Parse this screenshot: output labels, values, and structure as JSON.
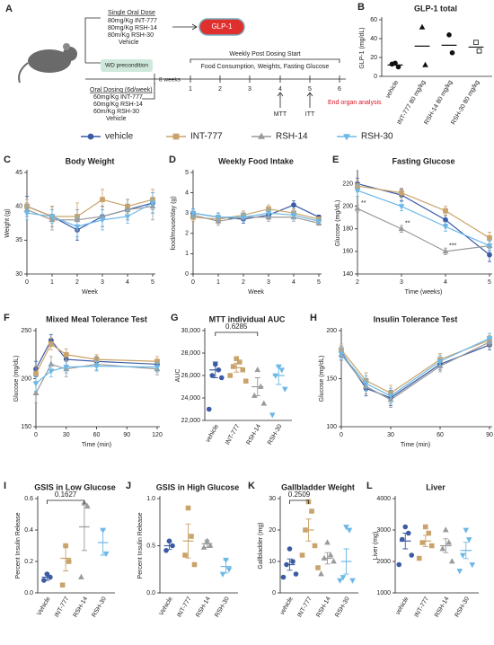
{
  "schematic": {
    "panel": "A",
    "single_dose_title": "Single Oral Dose",
    "single_doses": [
      "80mg/Kg INT-777",
      "80mg/Kg RSH-14",
      "80m/Kg RSH-30",
      "Vehicle"
    ],
    "readout": "GLP-1",
    "precondition": "WD precondition",
    "duration": "8 weeks",
    "dosing_title": "Oral Dosing (6d/week)",
    "dosing": [
      "60mg/Kg INT-777",
      "60mg/Kg RSH-14",
      "60m/Kg RSH-30",
      "Vehicle"
    ],
    "weekly_title": "Weekly Post Dosing Start",
    "weekly_measures": "Food Consumption, Weights, Fasting Glucose",
    "weeks": [
      1,
      2,
      3,
      4,
      5,
      6
    ],
    "tests": [
      "MTT",
      "ITT"
    ],
    "endpoint": "End organ analysis"
  },
  "legend": [
    {
      "name": "vehicle",
      "color": "#3b5ba5",
      "marker": "circle"
    },
    {
      "name": "INT-777",
      "color": "#c9a36b",
      "marker": "square"
    },
    {
      "name": "RSH-14",
      "color": "#9a9a9a",
      "marker": "triangle"
    },
    {
      "name": "RSH-30",
      "color": "#6cb8e6",
      "marker": "triangle-down"
    }
  ],
  "chart_data": [
    {
      "type": "dot",
      "panel": "B",
      "title": "GLP-1 total",
      "ylabel": "GLP-1 (mg/dL)",
      "ylim": [
        0,
        60
      ],
      "yticks": [
        0,
        20,
        40,
        60
      ],
      "groups": [
        {
          "name": "vehicle",
          "color": "#111",
          "marker": "circle",
          "values": [
            14,
            10,
            13
          ],
          "mean": 12
        },
        {
          "name": "INT-777 80 mg/kg",
          "color": "#111",
          "marker": "triangle",
          "values": [
            52,
            12
          ],
          "mean": 32
        },
        {
          "name": "RSH-14 80 mg/kg",
          "color": "#111",
          "marker": "circle",
          "values": [
            44,
            25
          ],
          "mean": 33
        },
        {
          "name": "RSH-30 80 mg/kg",
          "color": "#111",
          "marker": "square-open",
          "values": [
            36,
            27
          ],
          "mean": 31
        }
      ]
    },
    {
      "type": "line",
      "panel": "C",
      "title": "Body Weight",
      "xlabel": "Week",
      "ylabel": "Weight (g)",
      "x": [
        0,
        1,
        2,
        3,
        4,
        5
      ],
      "xlim": [
        0,
        5
      ],
      "xticks": [
        0,
        1,
        2,
        3,
        4,
        5
      ],
      "ylim": [
        30,
        45
      ],
      "yticks": [
        30,
        35,
        40,
        45
      ],
      "series": [
        {
          "name": "vehicle",
          "color": "#3b5ba5",
          "marker": "circle",
          "values": [
            40,
            38.5,
            36.5,
            38.5,
            39.5,
            40.5
          ],
          "errors": [
            1.5,
            1.5,
            1.5,
            1.5,
            1.5,
            1.5
          ]
        },
        {
          "name": "INT-777",
          "color": "#c9a36b",
          "marker": "square",
          "values": [
            40,
            38.5,
            38.5,
            41,
            40,
            41
          ],
          "errors": [
            1,
            1.5,
            2,
            1.5,
            1,
            1.5
          ]
        },
        {
          "name": "RSH-14",
          "color": "#9a9a9a",
          "marker": "triangle",
          "values": [
            39.5,
            38,
            38,
            38.5,
            39.5,
            40
          ],
          "errors": [
            1,
            1.5,
            1.5,
            1.5,
            1.5,
            2
          ]
        },
        {
          "name": "RSH-30",
          "color": "#6cb8e6",
          "marker": "triangle-down",
          "values": [
            39,
            38.5,
            37,
            38,
            38.5,
            40.5
          ],
          "errors": [
            1,
            1,
            1.5,
            1.5,
            1,
            1.5
          ]
        }
      ]
    },
    {
      "type": "line",
      "panel": "D",
      "title": "Weekly Food Intake",
      "xlabel": "Week",
      "ylabel": "food/mouse/day (g)",
      "x": [
        0,
        1,
        2,
        3,
        4,
        5
      ],
      "xlim": [
        0,
        5
      ],
      "xticks": [
        0,
        1,
        2,
        3,
        4,
        5
      ],
      "ylim": [
        0,
        5
      ],
      "yticks": [
        0,
        1,
        2,
        3,
        4,
        5
      ],
      "series": [
        {
          "name": "vehicle",
          "color": "#3b5ba5",
          "marker": "circle",
          "values": [
            3,
            2.8,
            2.7,
            2.9,
            3.4,
            2.8
          ],
          "errors": [
            0.2,
            0.2,
            0.2,
            0.2,
            0.2,
            0.1
          ]
        },
        {
          "name": "INT-777",
          "color": "#c9a36b",
          "marker": "square",
          "values": [
            2.8,
            2.7,
            2.9,
            3.2,
            3,
            2.7
          ],
          "errors": [
            0.2,
            0.2,
            0.2,
            0.2,
            0.2,
            0.1
          ]
        },
        {
          "name": "RSH-14",
          "color": "#9a9a9a",
          "marker": "triangle",
          "values": [
            2.9,
            2.6,
            2.8,
            2.8,
            2.8,
            2.5
          ],
          "errors": [
            0.2,
            0.2,
            0.2,
            0.2,
            0.2,
            0.1
          ]
        },
        {
          "name": "RSH-30",
          "color": "#6cb8e6",
          "marker": "triangle-down",
          "values": [
            3,
            2.8,
            2.8,
            3,
            2.9,
            2.6
          ],
          "errors": [
            0.2,
            0.2,
            0.2,
            0.2,
            0.2,
            0.1
          ]
        }
      ]
    },
    {
      "type": "line",
      "panel": "E",
      "title": "Fasting Glucose",
      "xlabel": "Time (weeks)",
      "ylabel": "Glucose (mg/dL)",
      "x": [
        2,
        3,
        4,
        5
      ],
      "xlim": [
        2,
        5
      ],
      "xticks": [
        2,
        3,
        4,
        5
      ],
      "ylim": [
        140,
        230
      ],
      "yticks": [
        140,
        160,
        180,
        200,
        220
      ],
      "annotations": [
        "**",
        "**",
        "***"
      ],
      "series": [
        {
          "name": "vehicle",
          "color": "#3b5ba5",
          "marker": "circle",
          "values": [
            220,
            210,
            188,
            157
          ],
          "errors": [
            5,
            5,
            4,
            6
          ]
        },
        {
          "name": "INT-777",
          "color": "#c9a36b",
          "marker": "square",
          "values": [
            218,
            212,
            196,
            172
          ],
          "errors": [
            5,
            4,
            4,
            5
          ]
        },
        {
          "name": "RSH-14",
          "color": "#9a9a9a",
          "marker": "triangle",
          "values": [
            198,
            180,
            160,
            165
          ],
          "errors": [
            3,
            3,
            3,
            4
          ]
        },
        {
          "name": "RSH-30",
          "color": "#6cb8e6",
          "marker": "triangle-down",
          "values": [
            214,
            200,
            182,
            165
          ],
          "errors": [
            5,
            4,
            4,
            5
          ]
        }
      ]
    },
    {
      "type": "line",
      "panel": "F",
      "title": "Mixed Meal Tolerance Test",
      "xlabel": "Time (min)",
      "ylabel": "Glucose (mg/dL)",
      "x": [
        0,
        15,
        30,
        60,
        120
      ],
      "xlim": [
        0,
        120
      ],
      "xticks": [
        0,
        30,
        60,
        90,
        120
      ],
      "ylim": [
        150,
        250
      ],
      "yticks": [
        150,
        200,
        250
      ],
      "series": [
        {
          "name": "vehicle",
          "color": "#3b5ba5",
          "marker": "circle",
          "values": [
            210,
            240,
            220,
            218,
            215
          ],
          "errors": [
            8,
            6,
            6,
            5,
            5
          ]
        },
        {
          "name": "INT-777",
          "color": "#c9a36b",
          "marker": "square",
          "values": [
            205,
            236,
            225,
            220,
            218
          ],
          "errors": [
            8,
            6,
            6,
            5,
            5
          ]
        },
        {
          "name": "RSH-14",
          "color": "#9a9a9a",
          "marker": "triangle",
          "values": [
            185,
            215,
            210,
            215,
            210
          ],
          "errors": [
            10,
            8,
            8,
            6,
            6
          ]
        },
        {
          "name": "RSH-30",
          "color": "#6cb8e6",
          "marker": "triangle-down",
          "values": [
            195,
            208,
            212,
            213,
            212
          ],
          "errors": [
            8,
            6,
            6,
            5,
            5
          ]
        }
      ]
    },
    {
      "type": "dot",
      "panel": "G",
      "title": "MTT individual AUC",
      "ylabel": "AUC",
      "annotation": "0.6285",
      "ylim": [
        22000,
        30000
      ],
      "yticks": [
        {
          "value": 22000,
          "label": "22,000"
        },
        {
          "value": 24000,
          "label": "24,000"
        },
        {
          "value": 26000,
          "label": "26,000"
        },
        {
          "value": 28000,
          "label": "28,000"
        },
        {
          "value": 30000,
          "label": "30,000"
        }
      ],
      "groups": [
        {
          "name": "vehicle",
          "color": "#3b5ba5",
          "marker": "circle",
          "values": [
            27000,
            26500,
            26000,
            25800,
            23000
          ],
          "mean": 26500,
          "error": 700
        },
        {
          "name": "INT-777",
          "color": "#c9a36b",
          "marker": "square",
          "values": [
            27500,
            27200,
            26800,
            26500,
            26000,
            25500
          ],
          "mean": 26700,
          "error": 400
        },
        {
          "name": "RSH-14",
          "color": "#9a9a9a",
          "marker": "triangle",
          "values": [
            26500,
            25000,
            24200,
            23500
          ],
          "mean": 25000,
          "error": 800
        },
        {
          "name": "RSH-30",
          "color": "#6cb8e6",
          "marker": "triangle-down",
          "values": [
            26800,
            26500,
            26000,
            24800,
            22500
          ],
          "mean": 26000,
          "error": 800
        }
      ]
    },
    {
      "type": "line",
      "panel": "H",
      "title": "Insulin Tolerance Test",
      "xlabel": "Time (min)",
      "ylabel": "Glucose (mg/dL)",
      "x": [
        0,
        15,
        30,
        60,
        90
      ],
      "xlim": [
        0,
        90
      ],
      "xticks": [
        0,
        30,
        60,
        90
      ],
      "ylim": [
        100,
        200
      ],
      "yticks": [
        100,
        150,
        200
      ],
      "series": [
        {
          "name": "vehicle",
          "color": "#3b5ba5",
          "marker": "circle",
          "values": [
            178,
            140,
            130,
            165,
            185
          ],
          "errors": [
            6,
            8,
            8,
            6,
            5
          ]
        },
        {
          "name": "INT-777",
          "color": "#c9a36b",
          "marker": "square",
          "values": [
            180,
            148,
            135,
            170,
            190
          ],
          "errors": [
            6,
            8,
            8,
            6,
            5
          ]
        },
        {
          "name": "RSH-14",
          "color": "#9a9a9a",
          "marker": "triangle",
          "values": [
            175,
            142,
            128,
            163,
            188
          ],
          "errors": [
            6,
            8,
            8,
            6,
            5
          ]
        },
        {
          "name": "RSH-30",
          "color": "#6cb8e6",
          "marker": "triangle-down",
          "values": [
            176,
            145,
            132,
            168,
            192
          ],
          "errors": [
            6,
            8,
            8,
            6,
            5
          ]
        }
      ]
    },
    {
      "type": "dot",
      "panel": "I",
      "title": "GSIS in Low Glucose",
      "ylabel": "Percent Insulin Release",
      "annotation": "0.1627",
      "ylim": [
        0,
        0.6
      ],
      "yticks": [
        {
          "value": 0,
          "label": "0.0"
        },
        0.2,
        0.4,
        0.6
      ],
      "groups": [
        {
          "name": "Vehicle",
          "color": "#3b5ba5",
          "marker": "circle",
          "values": [
            0.12,
            0.1,
            0.08
          ],
          "mean": 0.1,
          "error": 0.02
        },
        {
          "name": "INT-777",
          "color": "#c9a36b",
          "marker": "square",
          "values": [
            0.3,
            0.2,
            0.05
          ],
          "mean": 0.22,
          "error": 0.08
        },
        {
          "name": "RSH-14",
          "color": "#9a9a9a",
          "marker": "triangle",
          "values": [
            0.57,
            0.55,
            0.1
          ],
          "mean": 0.42,
          "error": 0.15
        },
        {
          "name": "RSH-30",
          "color": "#6cb8e6",
          "marker": "triangle-down",
          "values": [
            0.4,
            0.25
          ],
          "mean": 0.32,
          "error": 0.08
        }
      ]
    },
    {
      "type": "dot",
      "panel": "J",
      "title": "GSIS in High Glucose",
      "ylabel": "Percent Insulin Release",
      "ylim": [
        0,
        1
      ],
      "yticks": [
        {
          "value": 0,
          "label": "0.0"
        },
        0.5,
        {
          "value": 1,
          "label": "1.0"
        }
      ],
      "groups": [
        {
          "name": "Vehicle",
          "color": "#3b5ba5",
          "marker": "circle",
          "values": [
            0.55,
            0.5,
            0.45
          ],
          "mean": 0.5,
          "error": 0.04
        },
        {
          "name": "INT-777",
          "color": "#c9a36b",
          "marker": "square",
          "values": [
            0.9,
            0.6,
            0.4,
            0.3
          ],
          "mean": 0.55,
          "error": 0.18
        },
        {
          "name": "RSH-14",
          "color": "#9a9a9a",
          "marker": "triangle",
          "values": [
            0.55,
            0.5,
            0.48
          ],
          "mean": 0.52,
          "error": 0.04
        },
        {
          "name": "RSH-30",
          "color": "#6cb8e6",
          "marker": "triangle-down",
          "values": [
            0.35,
            0.25,
            0.2
          ],
          "mean": 0.28,
          "error": 0.07
        }
      ]
    },
    {
      "type": "dot",
      "panel": "K",
      "title": "Gallbladder Weight",
      "ylabel": "Gallbladder (mg)",
      "annotation": "0.2509",
      "ylim": [
        0,
        30
      ],
      "yticks": [
        0,
        10,
        20,
        30
      ],
      "groups": [
        {
          "name": "vehicle",
          "color": "#3b5ba5",
          "marker": "circle",
          "values": [
            14,
            10,
            9,
            6,
            5
          ],
          "mean": 9,
          "error": 1.8
        },
        {
          "name": "INT-777",
          "color": "#c9a36b",
          "marker": "square",
          "values": [
            29,
            26,
            20,
            15,
            12,
            8
          ],
          "mean": 20,
          "error": 3.5
        },
        {
          "name": "RSH-14",
          "color": "#9a9a9a",
          "marker": "triangle",
          "values": [
            16,
            12,
            11,
            10,
            6
          ],
          "mean": 11,
          "error": 1.8
        },
        {
          "name": "RSH-30",
          "color": "#6cb8e6",
          "marker": "triangle-down",
          "values": [
            21,
            20,
            5,
            4,
            4
          ],
          "mean": 10,
          "error": 4
        }
      ]
    },
    {
      "type": "dot",
      "panel": "L",
      "title": "Liver",
      "ylabel": "Liver (mg)",
      "ylim": [
        1000,
        4000
      ],
      "yticks": [
        1000,
        2000,
        3000,
        4000
      ],
      "groups": [
        {
          "name": "vehicle",
          "color": "#3b5ba5",
          "marker": "circle",
          "values": [
            3100,
            2900,
            2700,
            2200,
            1900
          ],
          "mean": 2650,
          "error": 250
        },
        {
          "name": "INT-777",
          "color": "#c9a36b",
          "marker": "square",
          "values": [
            3100,
            2900,
            2600,
            2500,
            2100
          ],
          "mean": 2650,
          "error": 180
        },
        {
          "name": "RSH-14",
          "color": "#9a9a9a",
          "marker": "triangle",
          "values": [
            3000,
            2600,
            2400,
            2000
          ],
          "mean": 2500,
          "error": 220
        },
        {
          "name": "RSH-30",
          "color": "#6cb8e6",
          "marker": "triangle-down",
          "values": [
            3000,
            2700,
            2200,
            1900,
            1700
          ],
          "mean": 2350,
          "error": 260
        }
      ]
    }
  ]
}
